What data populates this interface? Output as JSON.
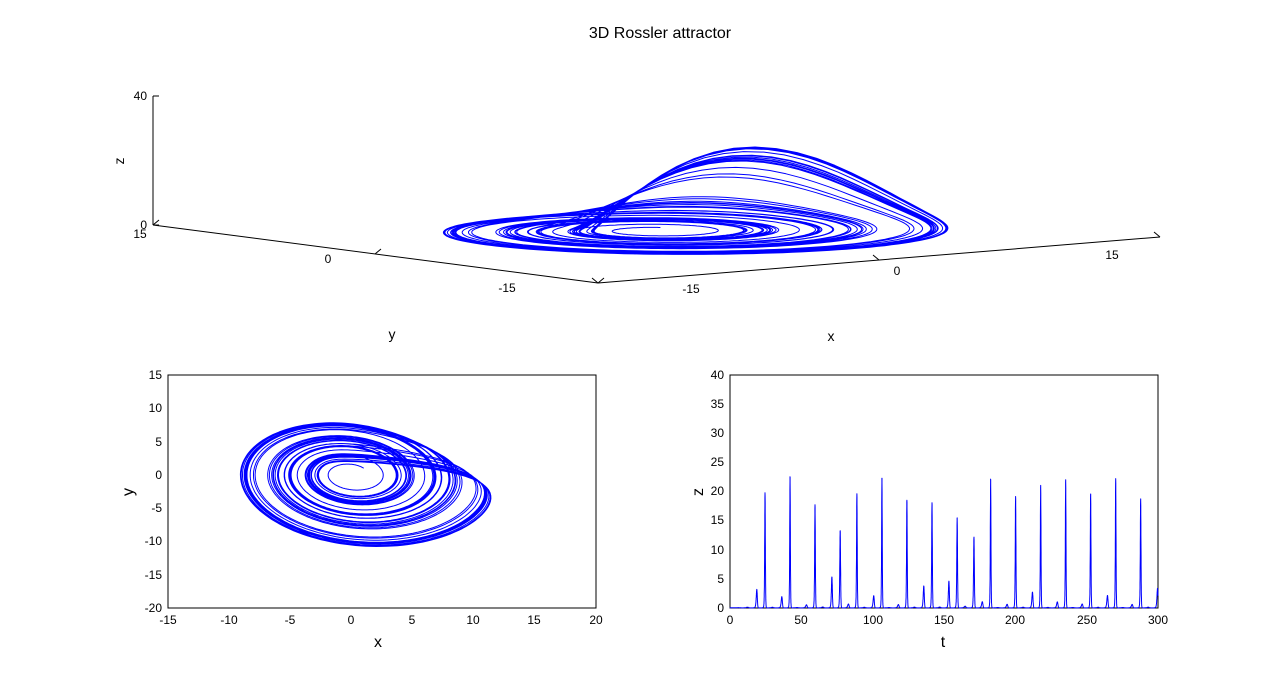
{
  "figure": {
    "title": "3D Rossler attractor"
  },
  "colors": {
    "trace": "#0000ff",
    "axis": "#000000",
    "background": "#ffffff"
  },
  "chart_data": [
    {
      "id": "rossler-3d",
      "type": "line",
      "title": "3D Rossler attractor",
      "xlabel": "x",
      "ylabel": "y",
      "zlabel": "z",
      "xlim": [
        -15,
        15
      ],
      "ylim": [
        -15,
        15
      ],
      "zlim": [
        0,
        40
      ],
      "x_ticks": [
        "-15",
        "0",
        "15"
      ],
      "y_ticks": [
        "15",
        "0",
        "-15"
      ],
      "z_ticks": [
        "0",
        "40"
      ],
      "grid": false,
      "view": "3d-perspective",
      "series": [
        {
          "generator": "rossler",
          "params": {
            "a": 0.2,
            "b": 0.2,
            "c": 5.7
          },
          "x0": [
            1,
            1,
            0
          ],
          "t_range": [
            0,
            300
          ]
        }
      ]
    },
    {
      "id": "rossler-xy",
      "type": "line",
      "title": "",
      "xlabel": "x",
      "ylabel": "y",
      "xlim": [
        -15,
        20
      ],
      "ylim": [
        -20,
        15
      ],
      "x_ticks": [
        "-15",
        "-10",
        "-5",
        "0",
        "5",
        "10",
        "15",
        "20"
      ],
      "y_ticks": [
        "15",
        "10",
        "5",
        "0",
        "-5",
        "-10",
        "-15",
        "-20"
      ],
      "grid": false,
      "series": [
        {
          "x_var": "x",
          "y_var": "y"
        }
      ]
    },
    {
      "id": "rossler-tz",
      "type": "line",
      "title": "",
      "xlabel": "t",
      "ylabel": "z",
      "xlim": [
        0,
        300
      ],
      "ylim": [
        0,
        40
      ],
      "x_ticks": [
        "0",
        "50",
        "100",
        "150",
        "200",
        "250",
        "300"
      ],
      "y_ticks": [
        "40",
        "35",
        "30",
        "25",
        "20",
        "15",
        "10",
        "5",
        "0"
      ],
      "grid": false,
      "series": [
        {
          "x_var": "t",
          "y_var": "z"
        }
      ]
    }
  ]
}
